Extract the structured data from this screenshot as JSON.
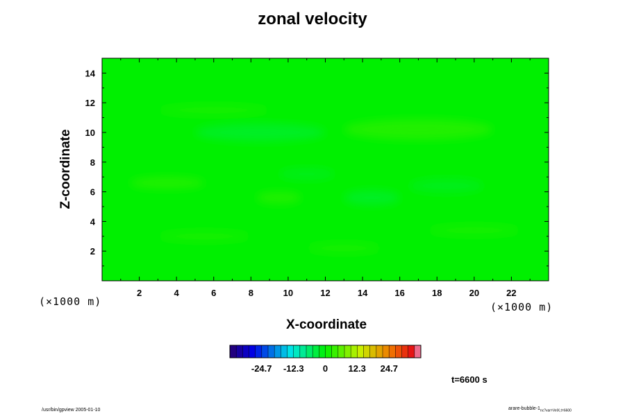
{
  "chart_data": {
    "type": "heatmap",
    "title": "zonal velocity",
    "xlabel": "X-coordinate",
    "ylabel": "Z-coordinate",
    "x_unit_label_left": "(×1000 m)",
    "x_unit_label_right": "(×1000 m)",
    "xlim": [
      0,
      24
    ],
    "ylim": [
      0,
      15
    ],
    "xticks": [
      2,
      4,
      6,
      8,
      10,
      12,
      14,
      16,
      18,
      20,
      22
    ],
    "yticks": [
      2,
      4,
      6,
      8,
      10,
      12,
      14
    ],
    "colorbar": {
      "range": [
        -37,
        37
      ],
      "tick_values": [
        -24.7,
        -12.3,
        0,
        12.3,
        24.7
      ],
      "tick_labels": [
        "-24.7",
        "-12.3",
        "0",
        "12.3",
        "24.7"
      ],
      "levels": 30
    },
    "field_background_value": 0,
    "features": [
      {
        "x": 8.5,
        "z": 10.0,
        "rx": 3.5,
        "rz": 0.6,
        "value": -3
      },
      {
        "x": 17.0,
        "z": 10.2,
        "rx": 4.0,
        "rz": 0.7,
        "value": 3
      },
      {
        "x": 14.5,
        "z": 5.6,
        "rx": 1.5,
        "rz": 0.5,
        "value": -3
      },
      {
        "x": 9.5,
        "z": 5.6,
        "rx": 1.2,
        "rz": 0.4,
        "value": 3
      },
      {
        "x": 3.5,
        "z": 6.6,
        "rx": 2.0,
        "rz": 0.4,
        "value": 3
      },
      {
        "x": 18.5,
        "z": 6.4,
        "rx": 2.0,
        "rz": 0.5,
        "value": -2
      },
      {
        "x": 11.0,
        "z": 7.2,
        "rx": 1.5,
        "rz": 0.4,
        "value": -2
      },
      {
        "x": 6.0,
        "z": 11.5,
        "rx": 3.0,
        "rz": 0.4,
        "value": 2
      },
      {
        "x": 20.0,
        "z": 3.4,
        "rx": 2.5,
        "rz": 0.4,
        "value": 2
      },
      {
        "x": 5.5,
        "z": 3.0,
        "rx": 2.5,
        "rz": 0.4,
        "value": 2
      },
      {
        "x": 13.0,
        "z": 2.2,
        "rx": 2.0,
        "rz": 0.4,
        "value": 2
      }
    ]
  },
  "annotations": {
    "time_label": "t=6600 s",
    "footer_left": "/usr/bin/gpview 2005-01-10",
    "footer_right_main": "arare-bubble-1",
    "footer_right_sub": "nc?var=VelX,t=6600"
  }
}
